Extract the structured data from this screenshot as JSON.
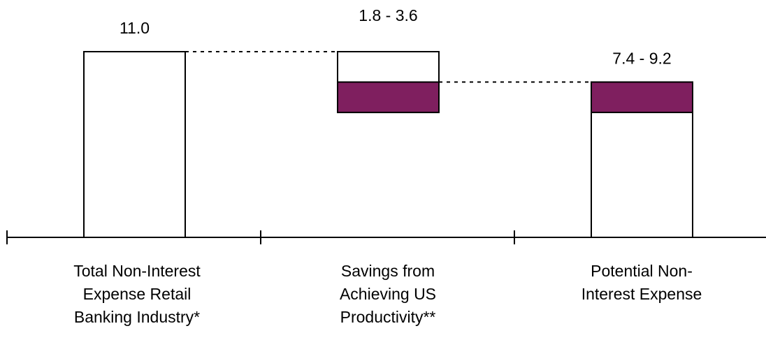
{
  "chart_data": {
    "type": "bar",
    "subtype": "waterfall",
    "categories": [
      "Total Non-Interest Expense Retail Banking Industry*",
      "Savings from Achieving US Productivity**",
      "Potential Non-Interest Expense"
    ],
    "category_lines": [
      [
        "Total Non-Interest",
        "Expense Retail",
        "Banking Industry*"
      ],
      [
        "Savings from",
        "Achieving US",
        "Productivity**"
      ],
      [
        "Potential Non-",
        "Interest Expense"
      ]
    ],
    "bars": [
      {
        "kind": "total",
        "value": 11.0,
        "label": "11.0"
      },
      {
        "kind": "decrease",
        "low": 1.8,
        "high": 3.6,
        "label": "1.8 - 3.6"
      },
      {
        "kind": "result",
        "low": 7.4,
        "high": 9.2,
        "label": "7.4 - 9.2"
      }
    ],
    "ylim": [
      0,
      11.0
    ],
    "title": "",
    "xlabel": "",
    "ylabel": "",
    "grid": false,
    "legend": "none",
    "connectors": "dotted",
    "colors": {
      "range": "#7f1f5f",
      "bar_fill": "#ffffff",
      "outline": "#000000"
    }
  }
}
